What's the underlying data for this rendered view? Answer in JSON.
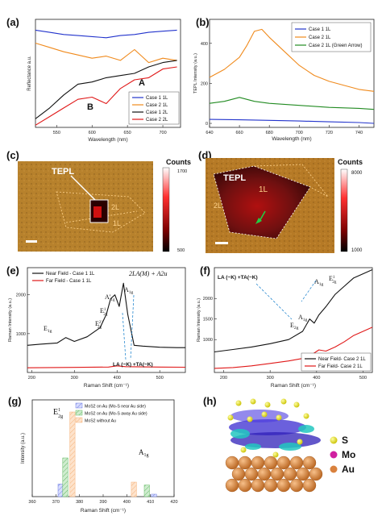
{
  "panels": {
    "a": "(a)",
    "b": "(b)",
    "c": "(c)",
    "d": "(d)",
    "e": "(e)",
    "f": "(f)",
    "g": "(g)",
    "h": "(h)"
  },
  "chart_data": [
    {
      "id": "a",
      "type": "line",
      "xlabel": "Wavelength (nm)",
      "ylabel": "Reflectance a.u.",
      "xlim": [
        520,
        725
      ],
      "xticks": [
        550,
        600,
        650,
        700
      ],
      "series": [
        {
          "name": "Case 1 1L",
          "color": "#2233cc",
          "x": [
            520,
            540,
            560,
            580,
            600,
            620,
            640,
            660,
            680,
            700,
            720
          ],
          "y": [
            0.9,
            0.88,
            0.86,
            0.85,
            0.84,
            0.83,
            0.85,
            0.86,
            0.88,
            0.89,
            0.9
          ]
        },
        {
          "name": "Case 2 1L",
          "color": "#f08a1c",
          "x": [
            520,
            540,
            560,
            580,
            600,
            620,
            640,
            660,
            680,
            700,
            720
          ],
          "y": [
            0.78,
            0.74,
            0.7,
            0.67,
            0.64,
            0.66,
            0.62,
            0.72,
            0.6,
            0.64,
            0.62
          ]
        },
        {
          "name": "Case 1 2L",
          "color": "#111111",
          "x": [
            520,
            540,
            560,
            580,
            600,
            620,
            640,
            660,
            680,
            700,
            720
          ],
          "y": [
            0.08,
            0.18,
            0.3,
            0.4,
            0.42,
            0.46,
            0.48,
            0.5,
            0.56,
            0.6,
            0.62
          ]
        },
        {
          "name": "Case 2 2L",
          "color": "#e01818",
          "x": [
            520,
            540,
            560,
            580,
            600,
            620,
            640,
            660,
            680,
            700,
            720
          ],
          "y": [
            0.02,
            0.1,
            0.18,
            0.26,
            0.28,
            0.22,
            0.36,
            0.44,
            0.46,
            0.54,
            0.56
          ]
        }
      ],
      "annotations": [
        "A",
        "B"
      ]
    },
    {
      "id": "b",
      "type": "line",
      "xlabel": "Wavelength (nm)",
      "ylabel": "TEPL Intensity (a.u.)",
      "xlim": [
        640,
        750
      ],
      "xticks": [
        640,
        660,
        680,
        700,
        720,
        740
      ],
      "yticks": [
        0,
        200,
        400
      ],
      "series": [
        {
          "name": "Case 1 1L",
          "color": "#2233cc",
          "x": [
            640,
            660,
            680,
            700,
            720,
            740,
            750
          ],
          "y": [
            20,
            18,
            15,
            12,
            8,
            4,
            0
          ]
        },
        {
          "name": "Case 2 1L",
          "color": "#f08a1c",
          "x": [
            640,
            650,
            660,
            665,
            670,
            675,
            680,
            690,
            700,
            710,
            720,
            730,
            740,
            750
          ],
          "y": [
            230,
            270,
            330,
            390,
            460,
            470,
            430,
            360,
            290,
            240,
            210,
            190,
            170,
            160
          ]
        },
        {
          "name": "Case 2 1L (Green Arrow)",
          "color": "#228b22",
          "x": [
            640,
            650,
            660,
            670,
            680,
            700,
            720,
            740,
            750
          ],
          "y": [
            100,
            110,
            130,
            110,
            100,
            90,
            80,
            75,
            70
          ]
        }
      ]
    },
    {
      "id": "c",
      "type": "heatmap",
      "colorbar_label": "Counts",
      "colorbar_ticks": [
        1700,
        500
      ],
      "labels": [
        "TEPL",
        "2L",
        "1L"
      ]
    },
    {
      "id": "d",
      "type": "heatmap",
      "colorbar_label": "Counts",
      "colorbar_ticks": [
        8000,
        1000
      ],
      "labels": [
        "TEPL",
        "1L",
        "2L"
      ]
    },
    {
      "id": "e",
      "type": "line",
      "xlabel": "Raman Shift (cm⁻¹)",
      "ylabel": "Raman Intensity (a.u.)",
      "xlim": [
        190,
        560
      ],
      "xticks": [
        200,
        300,
        400,
        500
      ],
      "yticks": [
        1000,
        2000
      ],
      "series": [
        {
          "name": "Near Field - Case 1 1L",
          "color": "#111111",
          "x": [
            190,
            220,
            260,
            280,
            300,
            330,
            360,
            375,
            385,
            395,
            405,
            415,
            425,
            440,
            460,
            500,
            540,
            560
          ],
          "y": [
            700,
            730,
            760,
            900,
            800,
            920,
            1150,
            1500,
            1900,
            2000,
            1700,
            2300,
            1500,
            700,
            680,
            650,
            640,
            640
          ]
        },
        {
          "name": "Far Field - Case 1 1L",
          "color": "#e01818",
          "x": [
            190,
            300,
            380,
            400,
            420,
            500,
            560
          ],
          "y": [
            120,
            130,
            140,
            170,
            150,
            140,
            135
          ]
        }
      ],
      "peak_labels": [
        "E1g",
        "E22g",
        "E12g",
        "A'1g",
        "A1g",
        "2LA(M) + A2u"
      ],
      "annotations": [
        "LA (~K) +TA(~K)"
      ]
    },
    {
      "id": "f",
      "type": "line",
      "xlabel": "Raman Shift (cm⁻¹)",
      "ylabel": "Raman Intensity (a.u.)",
      "xlim": [
        180,
        520
      ],
      "xticks": [
        200,
        300,
        400,
        500
      ],
      "yticks": [
        1000,
        1500,
        2000
      ],
      "series": [
        {
          "name": "Near Field- Case 2 1L",
          "color": "#111111",
          "x": [
            180,
            220,
            260,
            300,
            340,
            370,
            385,
            395,
            405,
            420,
            440,
            460,
            480,
            500,
            520
          ],
          "y": [
            700,
            760,
            820,
            900,
            1000,
            1200,
            1500,
            1400,
            1600,
            1800,
            2100,
            2300,
            2500,
            2600,
            2700
          ]
        },
        {
          "name": "Far Field- Case 2 1L",
          "color": "#e01818",
          "x": [
            180,
            220,
            260,
            300,
            340,
            380,
            405,
            420,
            440,
            460,
            480,
            500,
            520
          ],
          "y": [
            300,
            320,
            360,
            420,
            480,
            560,
            750,
            720,
            820,
            950,
            1100,
            1200,
            1300
          ]
        }
      ],
      "peak_labels": [
        "E2g",
        "A1g",
        "A1g",
        "E12g"
      ],
      "annotations": [
        "LA (~K) +TA(~K)"
      ]
    },
    {
      "id": "g",
      "type": "bar",
      "xlabel": "Raman Shift (cm⁻¹)",
      "ylabel": "Intensity (a.u.)",
      "xlim": [
        360,
        420
      ],
      "xticks": [
        360,
        370,
        380,
        390,
        400,
        410,
        420
      ],
      "ylim": [
        0,
        200
      ],
      "series": [
        {
          "name": "MoS2 on Au (Mo-S near Au side)",
          "color": "#6f7fe0",
          "x": [
            372,
            411.5
          ],
          "values": [
            26,
            5
          ]
        },
        {
          "name": "MoS2 on Au (Mo-S away Au side)",
          "color": "#64b964",
          "x": [
            374,
            408.5
          ],
          "values": [
            80,
            24
          ]
        },
        {
          "name": "MoS2 without Au",
          "color": "#f5b27a",
          "x": [
            377,
            403
          ],
          "values": [
            175,
            30
          ]
        }
      ],
      "peak_labels": [
        "E12g",
        "A1g"
      ]
    }
  ],
  "legend_h": {
    "S": "S",
    "Mo": "Mo",
    "Au": "Au"
  },
  "colors": {
    "blue": "#2233cc",
    "orange": "#f08a1c",
    "black": "#111111",
    "red": "#e01818",
    "green": "#228b22",
    "au": "#d9813d",
    "s": "#e8e000",
    "mo": "#d020a0"
  }
}
